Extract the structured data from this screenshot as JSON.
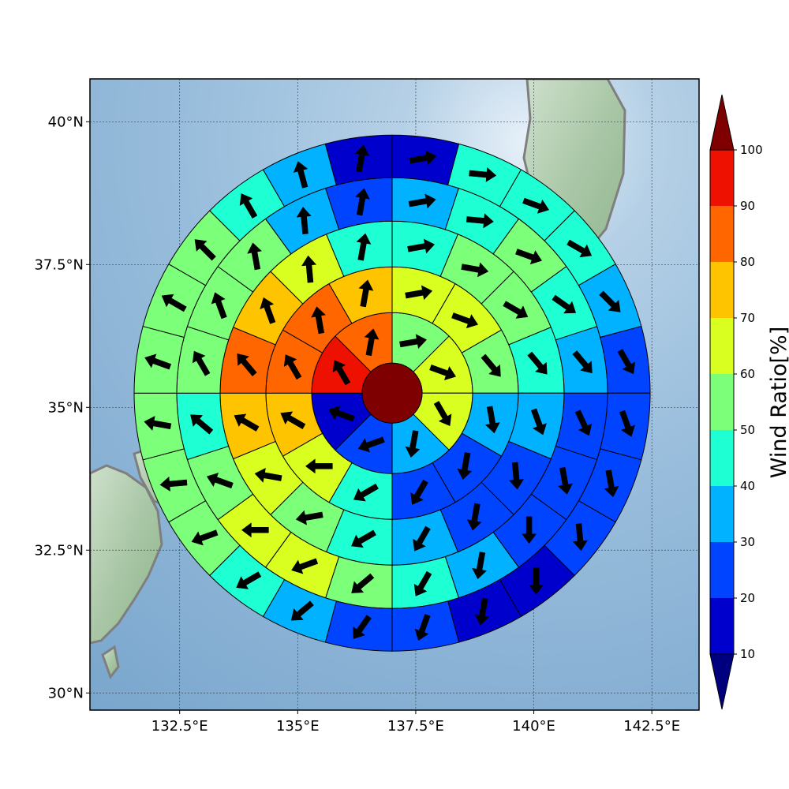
{
  "chart_data": {
    "type": "polar-sector-map",
    "title": "",
    "xlabel": "",
    "ylabel": "",
    "xlim": [
      130.6,
      143.5
    ],
    "ylim": [
      29.7,
      40.75
    ],
    "x_ticks": [
      {
        "value": 132.5,
        "label": "132.5°E"
      },
      {
        "value": 135,
        "label": "135°E"
      },
      {
        "value": 137.5,
        "label": "137.5°E"
      },
      {
        "value": 140,
        "label": "140°E"
      },
      {
        "value": 142.5,
        "label": "142.5°E"
      }
    ],
    "y_ticks": [
      {
        "value": 30,
        "label": "30°N"
      },
      {
        "value": 32.5,
        "label": "32.5°N"
      },
      {
        "value": 35,
        "label": "35°N"
      },
      {
        "value": 37.5,
        "label": "37.5°N"
      },
      {
        "value": 40,
        "label": "40°N"
      }
    ],
    "grid": true,
    "center": {
      "lon": 137.0,
      "lat": 35.25
    },
    "center_value": 105,
    "colorbar": {
      "label": "Wind Ratio[%]",
      "ticks": [
        10,
        20,
        30,
        40,
        50,
        60,
        70,
        80,
        90,
        100
      ],
      "bounds": [
        10,
        20,
        30,
        40,
        50,
        60,
        70,
        80,
        90,
        100
      ],
      "colors": [
        "#0000cd",
        "#0044ff",
        "#00b2ff",
        "#1fffd4",
        "#7cff79",
        "#d8ff1f",
        "#ffc400",
        "#ff6600",
        "#ee1000"
      ],
      "under_color": "#00007f",
      "over_color": "#7f0000",
      "extend": "both"
    },
    "center_disk_color": "#7f0000",
    "rings": [
      {
        "sector_deg": 45,
        "values": [
          55,
          65,
          65,
          35,
          25,
          15,
          95,
          85
        ],
        "arrow_dirs": [
          80,
          110,
          150,
          190,
          250,
          290,
          330,
          10
        ]
      },
      {
        "sector_deg": 30,
        "values": [
          65,
          65,
          55,
          35,
          25,
          25,
          45,
          65,
          75,
          85,
          85,
          75
        ],
        "arrow_dirs": [
          80,
          110,
          140,
          170,
          190,
          210,
          240,
          270,
          300,
          330,
          350,
          10
        ]
      },
      {
        "sector_deg": 22.5,
        "values": [
          45,
          55,
          55,
          45,
          35,
          25,
          25,
          35,
          45,
          55,
          65,
          75,
          85,
          75,
          65,
          45
        ],
        "arrow_dirs": [
          80,
          100,
          120,
          140,
          160,
          175,
          190,
          210,
          240,
          260,
          280,
          300,
          320,
          340,
          355,
          10
        ]
      },
      {
        "sector_deg": 18,
        "values": [
          35,
          45,
          55,
          45,
          35,
          25,
          25,
          25,
          35,
          45,
          55,
          65,
          65,
          55,
          45,
          55,
          55,
          55,
          35,
          25
        ],
        "arrow_dirs": [
          80,
          95,
          110,
          125,
          140,
          155,
          170,
          180,
          190,
          210,
          230,
          250,
          270,
          290,
          310,
          330,
          340,
          350,
          355,
          10
        ]
      },
      {
        "sector_deg": 15,
        "values": [
          15,
          45,
          45,
          45,
          35,
          25,
          25,
          25,
          25,
          15,
          15,
          25,
          25,
          35,
          45,
          55,
          55,
          55,
          55,
          55,
          55,
          45,
          35,
          15
        ],
        "arrow_dirs": [
          80,
          95,
          110,
          120,
          135,
          150,
          160,
          170,
          175,
          180,
          190,
          200,
          215,
          230,
          240,
          250,
          265,
          280,
          290,
          300,
          315,
          330,
          345,
          10
        ]
      }
    ]
  }
}
